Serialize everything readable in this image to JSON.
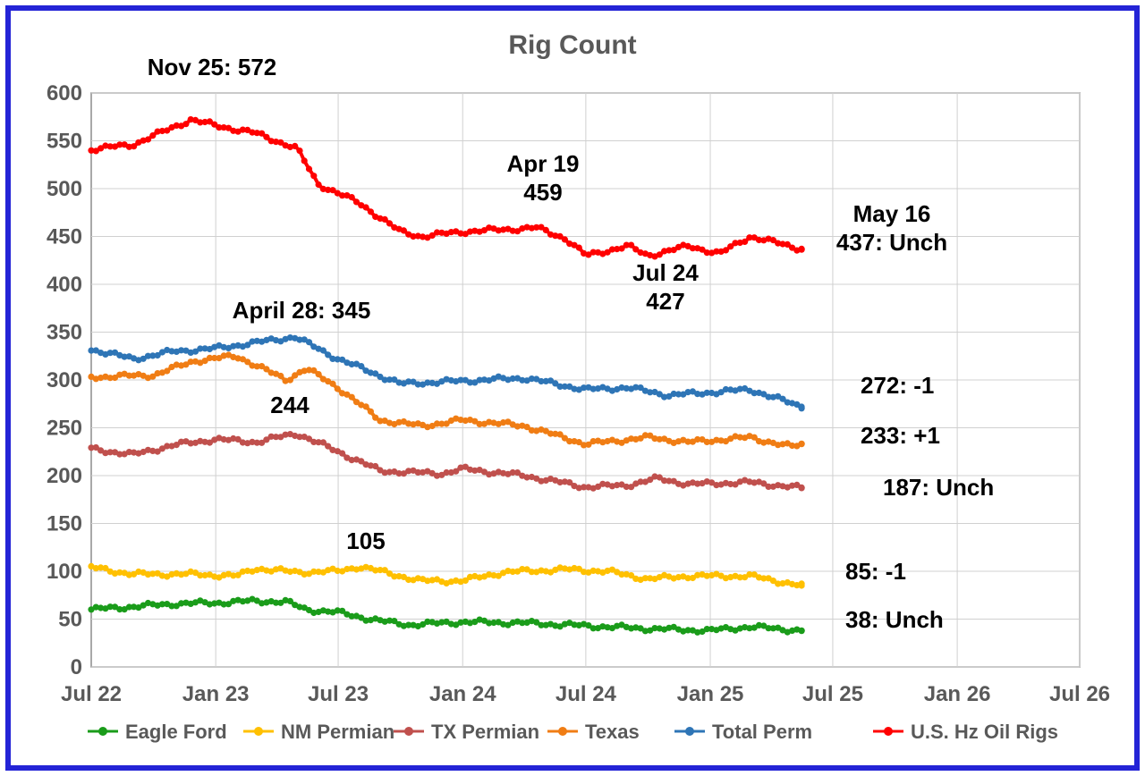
{
  "chart_data": {
    "type": "line",
    "title": "Rig Count",
    "xlabel": "",
    "ylabel": "",
    "ylim": [
      0,
      600
    ],
    "yticks": [
      0,
      50,
      100,
      150,
      200,
      250,
      300,
      350,
      400,
      450,
      500,
      550,
      600
    ],
    "xlim": [
      "2022-07-01",
      "2026-07-01"
    ],
    "xtick_labels": [
      "Jul 22",
      "Jan 23",
      "Jul 23",
      "Jan 24",
      "Jul 24",
      "Jan 25",
      "Jul 25",
      "Jan 26",
      "Jul 26"
    ],
    "xtick_dates": [
      "2022-07-01",
      "2023-01-01",
      "2023-07-01",
      "2024-01-01",
      "2024-07-01",
      "2025-01-01",
      "2025-07-01",
      "2026-01-01",
      "2026-07-01"
    ],
    "grid": true,
    "legend_position": "bottom",
    "series": [
      {
        "name": "Eagle Ford",
        "color": "#1a9c1a",
        "points": [
          [
            "2022-07-01",
            60
          ],
          [
            "2022-09-01",
            63
          ],
          [
            "2022-11-01",
            66
          ],
          [
            "2023-01-01",
            67
          ],
          [
            "2023-03-01",
            69
          ],
          [
            "2023-04-15",
            68
          ],
          [
            "2023-05-15",
            60
          ],
          [
            "2023-07-01",
            57
          ],
          [
            "2023-09-01",
            48
          ],
          [
            "2023-10-15",
            44
          ],
          [
            "2024-01-01",
            47
          ],
          [
            "2024-04-01",
            46
          ],
          [
            "2024-07-01",
            43
          ],
          [
            "2024-10-01",
            40
          ],
          [
            "2025-01-01",
            38
          ],
          [
            "2025-03-01",
            42
          ],
          [
            "2025-05-16",
            38
          ]
        ]
      },
      {
        "name": "NM Permian",
        "color": "#ffc000",
        "points": [
          [
            "2022-07-01",
            104
          ],
          [
            "2022-09-01",
            97
          ],
          [
            "2022-12-01",
            97
          ],
          [
            "2023-02-01",
            95
          ],
          [
            "2023-03-01",
            103
          ],
          [
            "2023-05-01",
            99
          ],
          [
            "2023-07-01",
            100
          ],
          [
            "2023-08-01",
            105
          ],
          [
            "2023-11-01",
            90
          ],
          [
            "2024-01-01",
            90
          ],
          [
            "2024-03-01",
            99
          ],
          [
            "2024-06-01",
            102
          ],
          [
            "2024-08-01",
            100
          ],
          [
            "2024-10-01",
            92
          ],
          [
            "2024-12-01",
            95
          ],
          [
            "2025-03-01",
            95
          ],
          [
            "2025-05-16",
            85
          ]
        ]
      },
      {
        "name": "TX Permian",
        "color": "#c0504d",
        "points": [
          [
            "2022-07-01",
            228
          ],
          [
            "2022-09-01",
            222
          ],
          [
            "2022-11-01",
            232
          ],
          [
            "2023-01-01",
            238
          ],
          [
            "2023-03-01",
            235
          ],
          [
            "2023-05-01",
            244
          ],
          [
            "2023-07-01",
            225
          ],
          [
            "2023-09-01",
            205
          ],
          [
            "2023-12-01",
            202
          ],
          [
            "2024-01-01",
            207
          ],
          [
            "2024-04-01",
            200
          ],
          [
            "2024-07-01",
            188
          ],
          [
            "2024-09-01",
            190
          ],
          [
            "2024-10-15",
            197
          ],
          [
            "2024-12-01",
            191
          ],
          [
            "2025-03-01",
            193
          ],
          [
            "2025-05-16",
            187
          ]
        ]
      },
      {
        "name": "Texas",
        "color": "#f07d14",
        "points": [
          [
            "2022-07-01",
            303
          ],
          [
            "2022-10-01",
            305
          ],
          [
            "2022-12-01",
            320
          ],
          [
            "2023-02-01",
            325
          ],
          [
            "2023-04-15",
            300
          ],
          [
            "2023-05-15",
            312
          ],
          [
            "2023-07-01",
            292
          ],
          [
            "2023-09-01",
            258
          ],
          [
            "2023-11-01",
            252
          ],
          [
            "2024-01-01",
            258
          ],
          [
            "2024-04-01",
            252
          ],
          [
            "2024-07-01",
            233
          ],
          [
            "2024-10-01",
            240
          ],
          [
            "2024-12-01",
            235
          ],
          [
            "2025-03-01",
            240
          ],
          [
            "2025-05-01",
            230
          ],
          [
            "2025-05-16",
            233
          ]
        ]
      },
      {
        "name": "Total Perm",
        "color": "#2e75b6",
        "points": [
          [
            "2022-07-01",
            332
          ],
          [
            "2022-09-01",
            322
          ],
          [
            "2022-11-01",
            330
          ],
          [
            "2023-01-01",
            333
          ],
          [
            "2023-04-28",
            345
          ],
          [
            "2023-07-01",
            322
          ],
          [
            "2023-10-01",
            296
          ],
          [
            "2023-12-01",
            298
          ],
          [
            "2024-04-01",
            302
          ],
          [
            "2024-07-01",
            290
          ],
          [
            "2024-09-01",
            292
          ],
          [
            "2024-11-01",
            284
          ],
          [
            "2025-01-01",
            287
          ],
          [
            "2025-03-01",
            290
          ],
          [
            "2025-05-16",
            272
          ]
        ]
      },
      {
        "name": "U.S. Hz Oil Rigs",
        "color": "#ff0000",
        "points": [
          [
            "2022-07-01",
            541
          ],
          [
            "2022-09-01",
            546
          ],
          [
            "2022-11-25",
            572
          ],
          [
            "2023-01-01",
            566
          ],
          [
            "2023-03-01",
            558
          ],
          [
            "2023-05-01",
            542
          ],
          [
            "2023-06-01",
            505
          ],
          [
            "2023-08-01",
            485
          ],
          [
            "2023-10-01",
            455
          ],
          [
            "2023-11-01",
            450
          ],
          [
            "2024-01-01",
            455
          ],
          [
            "2024-04-19",
            459
          ],
          [
            "2024-06-01",
            448
          ],
          [
            "2024-07-01",
            430
          ],
          [
            "2024-09-01",
            440
          ],
          [
            "2024-10-01",
            430
          ],
          [
            "2024-12-01",
            440
          ],
          [
            "2025-01-15",
            432
          ],
          [
            "2025-03-01",
            450
          ],
          [
            "2025-05-16",
            437
          ]
        ]
      }
    ],
    "annotations": [
      {
        "lines": [
          "Nov 25: 572"
        ]
      },
      {
        "lines": [
          "Apr 19",
          "459"
        ]
      },
      {
        "lines": [
          "May 16",
          "437: Unch"
        ]
      },
      {
        "lines": [
          "Jul 24",
          "427"
        ]
      },
      {
        "lines": [
          "April 28: 345"
        ]
      },
      {
        "lines": [
          "272: -1"
        ]
      },
      {
        "lines": [
          "244"
        ]
      },
      {
        "lines": [
          "233: +1"
        ]
      },
      {
        "lines": [
          "187: Unch"
        ]
      },
      {
        "lines": [
          "105"
        ]
      },
      {
        "lines": [
          "85: -1"
        ]
      },
      {
        "lines": [
          "38: Unch"
        ]
      }
    ]
  }
}
